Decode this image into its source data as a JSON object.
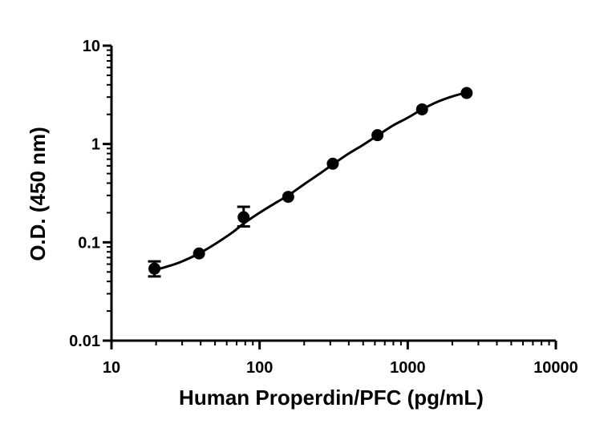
{
  "chart_data": {
    "type": "scatter",
    "title": "",
    "xlabel": "Human Properdin/PFC (pg/mL)",
    "ylabel": "O.D. (450 nm)",
    "x_scale": "log",
    "y_scale": "log",
    "xlim": [
      10,
      10000
    ],
    "ylim": [
      0.01,
      10
    ],
    "x_ticks": [
      10,
      100,
      1000,
      10000
    ],
    "x_tick_labels": [
      "10",
      "100",
      "1000",
      "10000"
    ],
    "y_ticks": [
      0.01,
      0.1,
      1,
      10
    ],
    "y_tick_labels": [
      "0.01",
      "0.1",
      "1",
      "10"
    ],
    "grid": false,
    "series": [
      {
        "marker": "circle",
        "color": "#000000",
        "points": [
          {
            "x": 19.5,
            "y": 0.054,
            "y_low": 0.045,
            "y_high": 0.064
          },
          {
            "x": 39,
            "y": 0.077,
            "y_low": null,
            "y_high": null
          },
          {
            "x": 78,
            "y": 0.18,
            "y_low": 0.145,
            "y_high": 0.23
          },
          {
            "x": 156,
            "y": 0.29,
            "y_low": null,
            "y_high": null
          },
          {
            "x": 312,
            "y": 0.63,
            "y_low": null,
            "y_high": null
          },
          {
            "x": 625,
            "y": 1.23,
            "y_low": null,
            "y_high": null
          },
          {
            "x": 1250,
            "y": 2.25,
            "y_low": null,
            "y_high": null
          },
          {
            "x": 2500,
            "y": 3.3,
            "y_low": null,
            "y_high": null
          }
        ]
      }
    ],
    "fit": {
      "type": "curve",
      "color": "#000000",
      "points": [
        [
          19.5,
          0.052
        ],
        [
          25,
          0.058
        ],
        [
          30,
          0.064
        ],
        [
          39,
          0.077
        ],
        [
          50,
          0.096
        ],
        [
          65,
          0.125
        ],
        [
          78,
          0.155
        ],
        [
          100,
          0.2
        ],
        [
          130,
          0.255
        ],
        [
          156,
          0.3
        ],
        [
          200,
          0.39
        ],
        [
          250,
          0.49
        ],
        [
          312,
          0.62
        ],
        [
          400,
          0.8
        ],
        [
          500,
          0.98
        ],
        [
          625,
          1.22
        ],
        [
          800,
          1.55
        ],
        [
          1000,
          1.85
        ],
        [
          1250,
          2.25
        ],
        [
          1600,
          2.7
        ],
        [
          2000,
          3.05
        ],
        [
          2500,
          3.35
        ]
      ]
    }
  }
}
